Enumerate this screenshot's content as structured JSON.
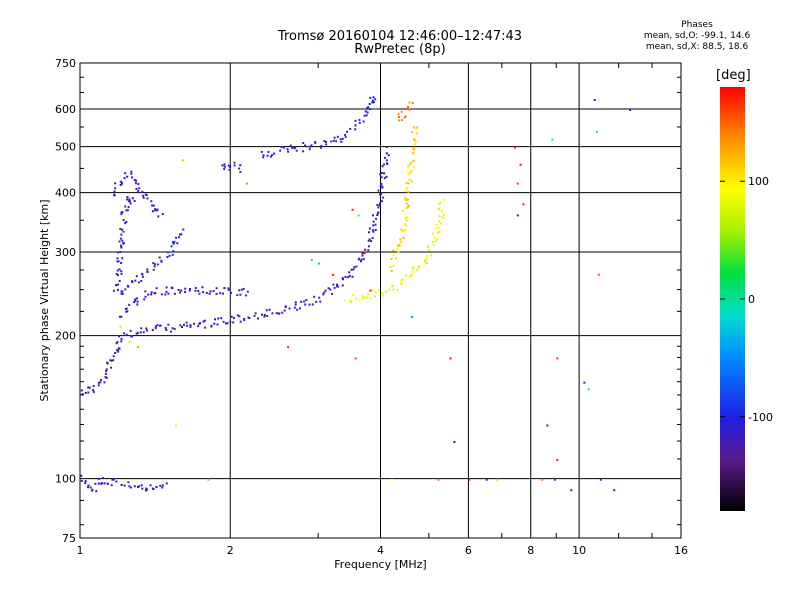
{
  "header": {
    "title": "Tromsø 20160104 12:46:00–12:47:43",
    "subtitle": "RwPretec (8p)"
  },
  "stats": {
    "label": "Phases",
    "line_o": "mean, sd,O: -99.1, 14.6",
    "line_x": "mean, sd,X:  88.5, 18.6"
  },
  "colorbar": {
    "unit": "[deg]",
    "ticks": [
      100,
      0,
      -100
    ],
    "tick_labels": [
      "100",
      "0",
      "-100"
    ],
    "range": [
      -180,
      180
    ]
  },
  "chart_data": {
    "type": "scatter",
    "title": "Tromsø 20160104 12:46:00–12:47:43",
    "subtitle": "RwPretec (8p)",
    "xlabel": "Frequency [MHz]",
    "ylabel": "Stationary phase Virtual Height [km]",
    "xscale": "log",
    "yscale": "log",
    "xlim": [
      1,
      16
    ],
    "ylim": [
      75,
      750
    ],
    "x_ticks": [
      1,
      2,
      4,
      6,
      8,
      10,
      16
    ],
    "x_tick_labels": [
      "1",
      "2",
      "4",
      "6",
      "8",
      "10",
      "16"
    ],
    "y_ticks": [
      75,
      100,
      200,
      300,
      400,
      500,
      600,
      750
    ],
    "y_tick_labels": [
      "75",
      "100",
      "200",
      "300",
      "400",
      "500",
      "600",
      "750"
    ],
    "grid": true,
    "color_by": "phase [deg]",
    "traces": [
      {
        "points": [
          [
            1.0,
            153
          ],
          [
            1.05,
            155
          ],
          [
            1.1,
            160
          ],
          [
            1.13,
            170
          ],
          [
            1.17,
            185
          ],
          [
            1.2,
            200
          ],
          [
            1.3,
            205
          ],
          [
            1.4,
            207
          ],
          [
            1.6,
            210
          ],
          [
            1.8,
            213
          ],
          [
            2.0,
            217
          ],
          [
            2.3,
            222
          ],
          [
            2.6,
            228
          ],
          [
            3.0,
            240
          ],
          [
            3.3,
            258
          ],
          [
            3.6,
            285
          ],
          [
            3.8,
            320
          ],
          [
            3.95,
            380
          ],
          [
            4.05,
            450
          ],
          [
            4.1,
            500
          ]
        ],
        "phase": -115
      },
      {
        "points": [
          [
            1.2,
            220
          ],
          [
            1.3,
            240
          ],
          [
            1.4,
            248
          ],
          [
            1.6,
            250
          ],
          [
            1.8,
            250
          ],
          [
            2.0,
            248
          ],
          [
            2.2,
            248
          ]
        ],
        "phase": -110
      },
      {
        "points": [
          [
            1.2,
            245
          ],
          [
            1.3,
            265
          ],
          [
            1.4,
            280
          ],
          [
            1.5,
            300
          ],
          [
            1.55,
            320
          ],
          [
            1.6,
            335
          ]
        ],
        "phase": -105
      },
      {
        "points": [
          [
            1.15,
            400
          ],
          [
            1.2,
            420
          ],
          [
            1.25,
            440
          ],
          [
            1.3,
            420
          ],
          [
            1.35,
            390
          ],
          [
            1.4,
            370
          ],
          [
            1.45,
            360
          ]
        ],
        "phase": -110
      },
      {
        "points": [
          [
            1.18,
            250
          ],
          [
            1.2,
            300
          ],
          [
            1.22,
            360
          ],
          [
            1.25,
            390
          ],
          [
            1.28,
            380
          ]
        ],
        "phase": -112
      },
      {
        "points": [
          [
            1.9,
            450
          ],
          [
            2.0,
            460
          ],
          [
            2.1,
            450
          ]
        ],
        "phase": -105
      },
      {
        "points": [
          [
            2.3,
            480
          ],
          [
            2.6,
            495
          ],
          [
            2.9,
            505
          ],
          [
            3.1,
            510
          ],
          [
            3.3,
            520
          ],
          [
            3.5,
            550
          ],
          [
            3.7,
            585
          ],
          [
            3.85,
            640
          ],
          [
            3.9,
            620
          ]
        ],
        "phase": -105
      },
      {
        "points": [
          [
            3.4,
            240
          ],
          [
            3.7,
            243
          ],
          [
            4.0,
            247
          ],
          [
            4.3,
            255
          ],
          [
            4.6,
            270
          ],
          [
            4.9,
            290
          ],
          [
            5.1,
            320
          ],
          [
            5.25,
            360
          ],
          [
            5.3,
            390
          ]
        ],
        "phase": 85
      },
      {
        "points": [
          [
            4.2,
            280
          ],
          [
            4.4,
            330
          ],
          [
            4.55,
            420
          ],
          [
            4.65,
            520
          ],
          [
            4.7,
            560
          ]
        ],
        "phase": 110
      },
      {
        "points": [
          [
            4.3,
            570
          ],
          [
            4.45,
            595
          ],
          [
            4.6,
            620
          ]
        ],
        "phase": 140
      },
      {
        "points": [
          [
            1.0,
            100
          ],
          [
            1.05,
            95
          ],
          [
            1.1,
            100
          ],
          [
            1.2,
            98
          ],
          [
            1.3,
            97
          ],
          [
            1.4,
            95
          ],
          [
            1.5,
            97
          ]
        ],
        "phase": -110
      }
    ],
    "scatter_points": [
      [
        1.2,
        210,
        60
      ],
      [
        1.25,
        195,
        80
      ],
      [
        1.3,
        190,
        40
      ],
      [
        1.15,
        175,
        90
      ],
      [
        1.6,
        470,
        120
      ],
      [
        1.55,
        130,
        75
      ],
      [
        1.8,
        100,
        35
      ],
      [
        2.15,
        420,
        140
      ],
      [
        2.6,
        190,
        170
      ],
      [
        3.2,
        270,
        175
      ],
      [
        3.0,
        285,
        20
      ],
      [
        2.9,
        290,
        -20
      ],
      [
        3.5,
        370,
        170
      ],
      [
        3.6,
        360,
        40
      ],
      [
        3.7,
        300,
        175
      ],
      [
        3.8,
        250,
        170
      ],
      [
        3.55,
        180,
        160
      ],
      [
        4.2,
        100,
        90
      ],
      [
        4.6,
        220,
        -45
      ],
      [
        5.2,
        100,
        150
      ],
      [
        5.6,
        120,
        -100
      ],
      [
        5.5,
        180,
        175
      ],
      [
        6.0,
        100,
        170
      ],
      [
        6.5,
        100,
        -95
      ],
      [
        6.8,
        100,
        50
      ],
      [
        7.4,
        500,
        170
      ],
      [
        7.5,
        420,
        160
      ],
      [
        7.5,
        360,
        -110
      ],
      [
        7.6,
        460,
        175
      ],
      [
        7.7,
        380,
        175
      ],
      [
        8.4,
        100,
        150
      ],
      [
        8.9,
        100,
        -90
      ],
      [
        8.8,
        520,
        -15
      ],
      [
        8.6,
        130,
        -100
      ],
      [
        9.0,
        180,
        160
      ],
      [
        9.0,
        110,
        170
      ],
      [
        10.2,
        160,
        -100
      ],
      [
        10.4,
        155,
        10
      ],
      [
        10.7,
        630,
        -110
      ],
      [
        10.8,
        540,
        -5
      ],
      [
        10.9,
        270,
        150
      ],
      [
        11.0,
        100,
        -100
      ],
      [
        12.6,
        600,
        -110
      ],
      [
        11.7,
        95,
        -110
      ],
      [
        9.6,
        95,
        -100
      ]
    ]
  }
}
